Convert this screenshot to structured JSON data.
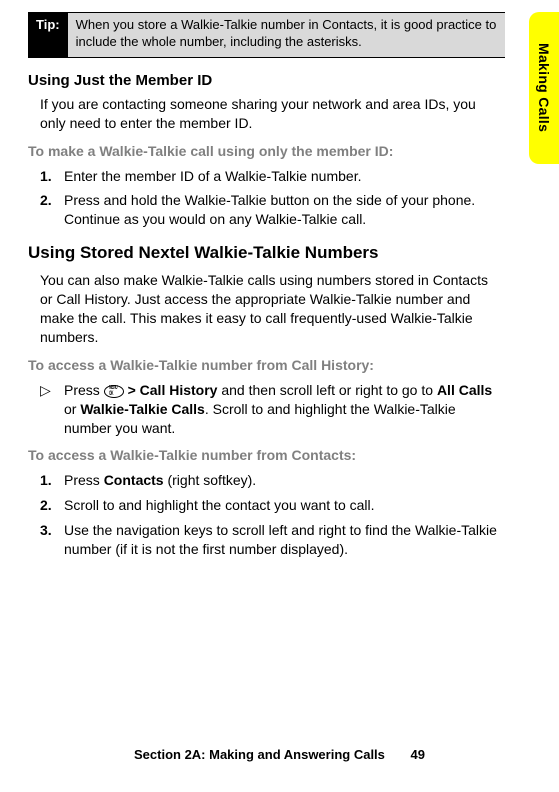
{
  "colors": {
    "tab_bg": "#ffff00",
    "tip_bg": "#d9d9d9",
    "tip_label_bg": "#000000",
    "tip_label_fg": "#ffffff",
    "subhead_fg": "#808080",
    "body_fg": "#000000",
    "page_bg": "#ffffff"
  },
  "typography": {
    "h2_size": 17,
    "h3_size": 15,
    "body_size": 14,
    "subhead_size": 14,
    "tip_size": 13,
    "footer_size": 13,
    "font_family": "Verdana, Geneva, sans-serif"
  },
  "side_tab": "Making Calls",
  "tip": {
    "label": "Tip:",
    "text": "When you store a Walkie-Talkie number in Contacts, it is good practice to include the whole number, including the asterisks."
  },
  "section1": {
    "heading": "Using Just the Member ID",
    "body": "If you are contacting someone sharing your network and area IDs, you only need to enter the member ID.",
    "subhead": "To make a Walkie-Talkie call using only the member ID:",
    "steps": [
      {
        "num": "1.",
        "text": "Enter the member ID of a Walkie-Talkie number."
      },
      {
        "num": "2.",
        "text": "Press and hold the Walkie-Talkie button on the side of your phone. Continue as you would on any Walkie-Talkie call."
      }
    ]
  },
  "section2": {
    "heading": "Using Stored Nextel Walkie-Talkie Numbers",
    "body": "You can also make Walkie-Talkie calls using numbers stored in Contacts or Call History. Just access the appropriate Walkie-Talkie number and make the call. This makes it easy to call frequently-used Walkie-Talkie numbers.",
    "subhead1": "To access a Walkie-Talkie number from Call History:",
    "bullet": {
      "marker": "▷",
      "pre": "Press ",
      "key": "MENU OK",
      "mid1": " > ",
      "b1": "Call History",
      "mid2": " and then scroll left or right to go to ",
      "b2": "All Calls",
      "mid3": " or ",
      "b3": "Walkie-Talkie Calls",
      "post": ". Scroll to and highlight the Walkie-Talkie number you want."
    },
    "subhead2": "To access a Walkie-Talkie number from Contacts:",
    "steps2": [
      {
        "num": "1.",
        "pre": "Press ",
        "b": "Contacts",
        "post": " (right softkey)."
      },
      {
        "num": "2.",
        "text": "Scroll to and highlight the contact you want to call."
      },
      {
        "num": "3.",
        "text": "Use the navigation keys to scroll left and right to find the Walkie-Talkie number (if it is not the first number displayed)."
      }
    ]
  },
  "footer": {
    "section": "Section 2A: Making and Answering Calls",
    "page": "49"
  }
}
